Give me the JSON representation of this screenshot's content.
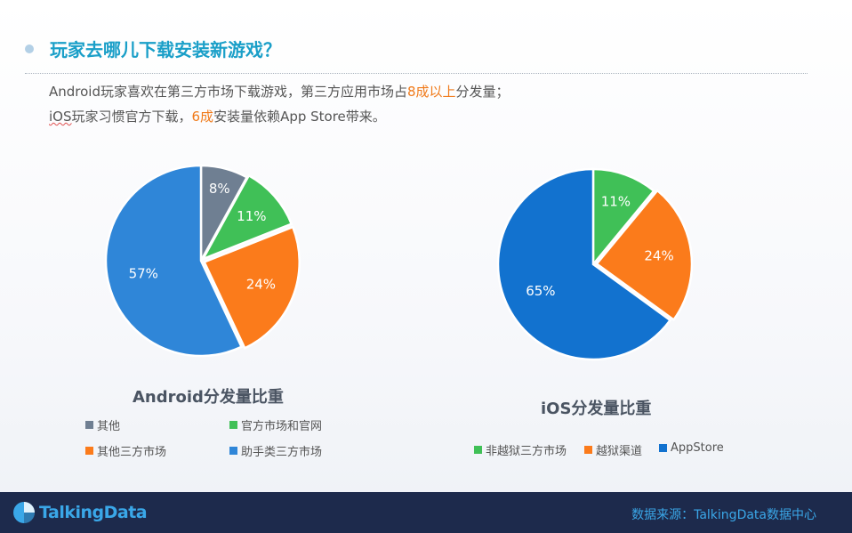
{
  "header": {
    "title": "玩家去哪儿下载安装新游戏？",
    "line1": {
      "a": "Android玩家喜欢在第三方市场下载游戏，第三方应用市场占",
      "b": "8成以上",
      "c": "分发量；"
    },
    "line2": {
      "a": "iOS",
      "b": "玩家习惯官方下载，",
      "c": "6成",
      "d": "安装量依赖App Store带来。"
    }
  },
  "chart_data": [
    {
      "type": "pie",
      "title": "Android分发量比重",
      "legend_position": "bottom",
      "slices": [
        {
          "name": "其他",
          "value": 8,
          "label": "8%",
          "color": "#6f7f92"
        },
        {
          "name": "官方市场和官网",
          "value": 11,
          "label": "11%",
          "color": "#40c057"
        },
        {
          "name": "其他三方市场",
          "value": 24,
          "label": "24%",
          "color": "#fb7b1b"
        },
        {
          "name": "助手类三方市场",
          "value": 57,
          "label": "57%",
          "color": "#2f86d8"
        }
      ]
    },
    {
      "type": "pie",
      "title": "iOS分发量比重",
      "legend_position": "bottom",
      "slices": [
        {
          "name": "非越狱三方市场",
          "value": 11,
          "label": "11%",
          "color": "#40c057"
        },
        {
          "name": "越狱渠道",
          "value": 24,
          "label": "24%",
          "color": "#fb7b1b"
        },
        {
          "name": "AppStore",
          "value": 65,
          "label": "65%",
          "color": "#1272cf"
        }
      ]
    }
  ],
  "footer": {
    "logo_text": "TalkingData",
    "source": "数据来源：TalkingData数据中心",
    "bg_color": "#1d2a4c",
    "accent_color": "#3aa7e8"
  }
}
